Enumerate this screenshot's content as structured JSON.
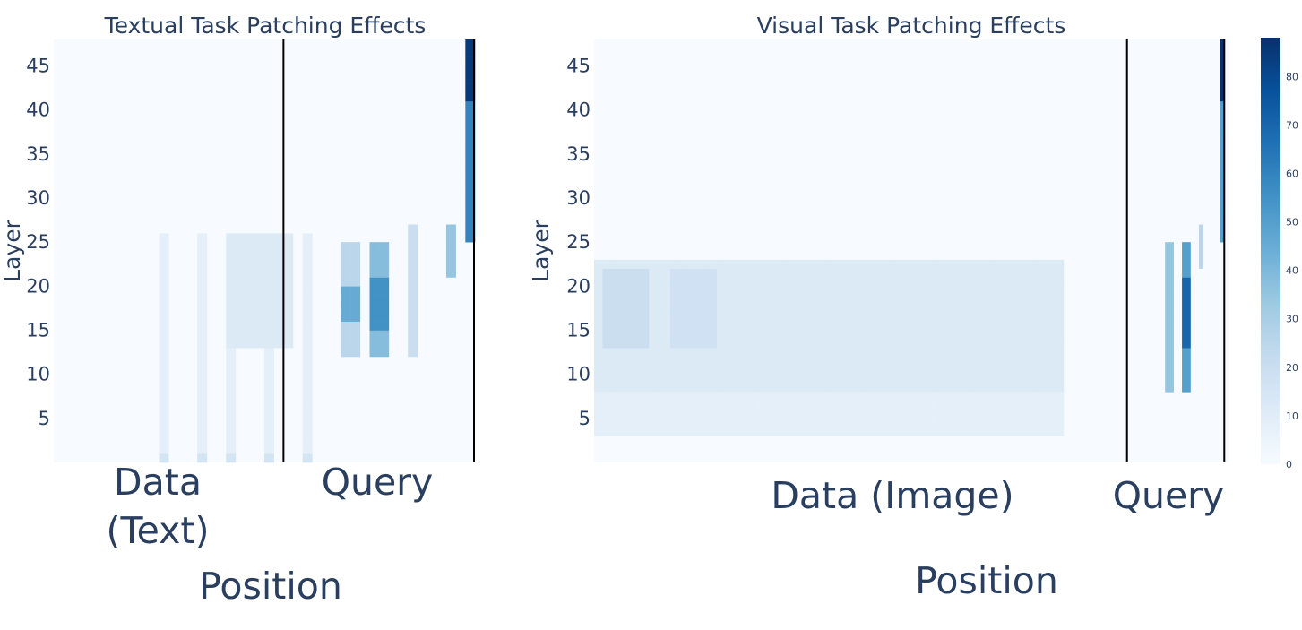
{
  "chart_data": [
    {
      "type": "heatmap",
      "title": "Textual Task Patching Effects",
      "xlabel": "Position",
      "ylabel": "Layer",
      "y_ticks": [
        5,
        10,
        15,
        20,
        25,
        30,
        35,
        40,
        45
      ],
      "ylim": [
        0,
        48
      ],
      "num_positions": 44,
      "groups": [
        {
          "label_lines": [
            "Data",
            "(Text)"
          ],
          "start": 0,
          "end": 24
        },
        {
          "label_lines": [
            "Query"
          ],
          "start": 24,
          "end": 44
        }
      ],
      "separators": [
        24,
        44
      ],
      "hotspots": [
        {
          "positions": [
            11,
            15,
            18,
            22,
            26
          ],
          "layers": [
            0,
            26
          ],
          "value": 8
        },
        {
          "positions": [
            11,
            15,
            18,
            22,
            26
          ],
          "layers": [
            0,
            1
          ],
          "value": 16
        },
        {
          "positions": [
            18,
            19,
            20,
            21,
            22,
            23,
            24
          ],
          "layers": [
            13,
            26
          ],
          "value": 12
        },
        {
          "positions": [
            30,
            31
          ],
          "layers": [
            12,
            25
          ],
          "value": 25
        },
        {
          "positions": [
            30,
            31
          ],
          "layers": [
            16,
            20
          ],
          "value": 45
        },
        {
          "positions": [
            33,
            34
          ],
          "layers": [
            12,
            25
          ],
          "value": 38
        },
        {
          "positions": [
            33,
            34
          ],
          "layers": [
            15,
            21
          ],
          "value": 55
        },
        {
          "positions": [
            37
          ],
          "layers": [
            12,
            27
          ],
          "value": 20
        },
        {
          "positions": [
            41
          ],
          "layers": [
            21,
            27
          ],
          "value": 35
        },
        {
          "positions": [
            43
          ],
          "layers": [
            25,
            48
          ],
          "value": 60
        },
        {
          "positions": [
            43
          ],
          "layers": [
            41,
            48
          ],
          "value": 85
        }
      ]
    },
    {
      "type": "heatmap",
      "title": "Visual Task Patching Effects",
      "xlabel": "Position",
      "ylabel": "Layer",
      "y_ticks": [
        5,
        10,
        15,
        20,
        25,
        30,
        35,
        40,
        45
      ],
      "ylim": [
        0,
        48
      ],
      "num_positions": 150,
      "groups": [
        {
          "label_lines": [
            "Data (Image)"
          ],
          "start": 0,
          "end": 126
        },
        {
          "label_lines": [
            "Query"
          ],
          "start": 126,
          "end": 150
        }
      ],
      "separators": [
        126,
        149
      ],
      "hotspots": [
        {
          "positions": [
            0,
            110
          ],
          "range": true,
          "layers": [
            8,
            23
          ],
          "value": 12
        },
        {
          "positions": [
            0,
            110
          ],
          "range": true,
          "layers": [
            3,
            8
          ],
          "value": 8
        },
        {
          "positions": [
            2,
            12
          ],
          "range": true,
          "layers": [
            13,
            22
          ],
          "value": 20
        },
        {
          "positions": [
            18,
            28
          ],
          "range": true,
          "layers": [
            13,
            22
          ],
          "value": 18
        },
        {
          "positions": [
            135,
            136
          ],
          "layers": [
            8,
            25
          ],
          "value": 35
        },
        {
          "positions": [
            139,
            140
          ],
          "layers": [
            8,
            25
          ],
          "value": 50
        },
        {
          "positions": [
            139,
            140
          ],
          "layers": [
            13,
            21
          ],
          "value": 70
        },
        {
          "positions": [
            143
          ],
          "layers": [
            22,
            27
          ],
          "value": 25
        },
        {
          "positions": [
            148
          ],
          "layers": [
            25,
            48
          ],
          "value": 50
        },
        {
          "positions": [
            148
          ],
          "layers": [
            41,
            48
          ],
          "value": 88
        }
      ]
    }
  ],
  "colorbar": {
    "ticks": [
      0,
      10,
      20,
      30,
      40,
      50,
      60,
      70,
      80
    ],
    "range": [
      0,
      88
    ],
    "colorscale": [
      "#f7fbff",
      "#deebf7",
      "#c6dbef",
      "#9ecae1",
      "#6baed6",
      "#4292c6",
      "#2171b5",
      "#08519c",
      "#08306b"
    ]
  }
}
